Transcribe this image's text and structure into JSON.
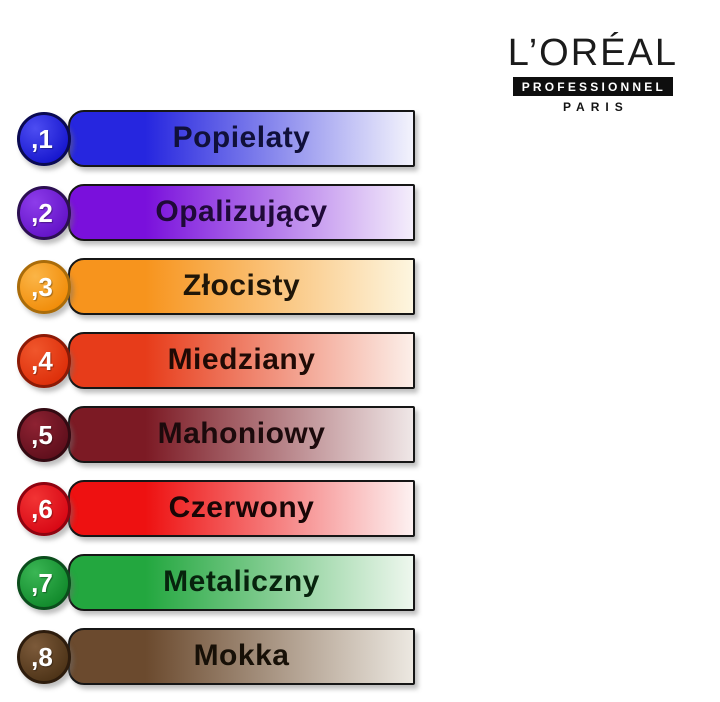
{
  "logo": {
    "brand": "L’ORÉAL",
    "division": "PROFESSIONNEL",
    "city": "PARIS"
  },
  "rows": [
    {
      "number": ",1",
      "name": "Popielaty",
      "colors": {
        "bar_from": "#2626df",
        "bar_to": "#f3f3fc",
        "circle_light": "#4d4df2",
        "circle_dark": "#1717ce",
        "circle_border": "#0a0a52",
        "text": "#10103a"
      }
    },
    {
      "number": ",2",
      "name": "Opalizujący",
      "colors": {
        "bar_from": "#7a10dc",
        "bar_to": "#f4eefb",
        "circle_light": "#8d3cea",
        "circle_dark": "#6414c8",
        "circle_border": "#2c0f52",
        "text": "#1f0a38"
      }
    },
    {
      "number": ",3",
      "name": "Złocisty",
      "colors": {
        "bar_from": "#f7941d",
        "bar_to": "#fdf6e0",
        "circle_light": "#fbb547",
        "circle_dark": "#f18d0a",
        "circle_border": "#aa6c0a",
        "text": "#1f1608"
      }
    },
    {
      "number": ",4",
      "name": "Miedziany",
      "colors": {
        "bar_from": "#e73c1a",
        "bar_to": "#fcefe9",
        "circle_light": "#f0562c",
        "circle_dark": "#dd2f0a",
        "circle_border": "#8c1a06",
        "text": "#200a05"
      }
    },
    {
      "number": ",5",
      "name": "Mahoniowy",
      "colors": {
        "bar_from": "#7c1a24",
        "bar_to": "#efe7e7",
        "circle_light": "#8e2232",
        "circle_dark": "#5f0f1c",
        "circle_border": "#330a12",
        "text": "#1c0a0c"
      }
    },
    {
      "number": ",6",
      "name": "Czerwony",
      "colors": {
        "bar_from": "#ee1111",
        "bar_to": "#fdf1f1",
        "circle_light": "#f23434",
        "circle_dark": "#d80815",
        "circle_border": "#8f0310",
        "text": "#180606"
      }
    },
    {
      "number": ",7",
      "name": "Metaliczny",
      "colors": {
        "bar_from": "#23a73f",
        "bar_to": "#eef7ee",
        "circle_light": "#3ab654",
        "circle_dark": "#128a2c",
        "circle_border": "#0b4d1c",
        "text": "#07230d"
      }
    },
    {
      "number": ",8",
      "name": "Mokka",
      "colors": {
        "bar_from": "#6b4a2e",
        "bar_to": "#ece8e1",
        "circle_light": "#7c5a3a",
        "circle_dark": "#4e3418",
        "circle_border": "#2d1c0d",
        "text": "#171007"
      }
    }
  ]
}
